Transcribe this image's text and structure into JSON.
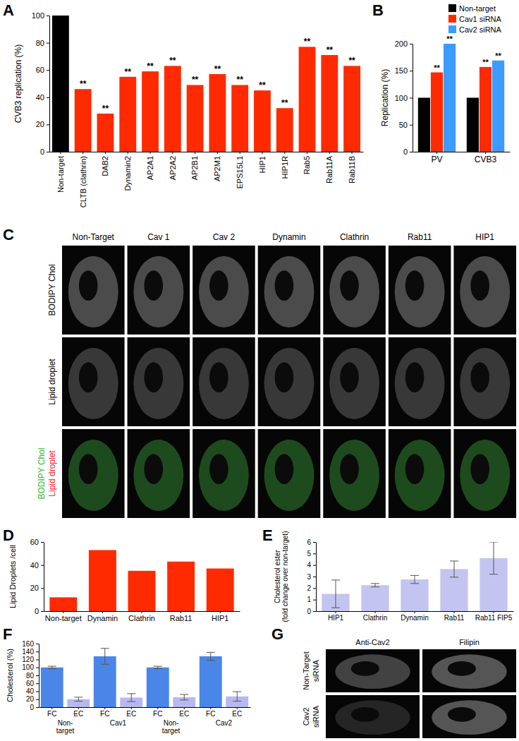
{
  "chart_data": [
    {
      "type": "bar",
      "title": "A",
      "ylabel": "CVB3 replication (%)",
      "categories": [
        "Non-target",
        "CLTB (clathrin)",
        "DAB2",
        "Dynamin2",
        "AP2A1",
        "AP2A2",
        "AP2B1",
        "AP2M1",
        "EPS15L1",
        "HIP1",
        "HIP1R",
        "Rab5",
        "Rab11A",
        "Rab11B"
      ],
      "values": [
        100,
        46,
        28,
        55,
        59,
        63,
        49,
        57,
        49,
        45,
        32,
        77,
        71,
        63
      ],
      "colors": [
        "#000000",
        "#ff2a00",
        "#ff2a00",
        "#ff2a00",
        "#ff2a00",
        "#ff2a00",
        "#ff2a00",
        "#ff2a00",
        "#ff2a00",
        "#ff2a00",
        "#ff2a00",
        "#ff2a00",
        "#ff2a00",
        "#ff2a00"
      ],
      "annotations": [
        null,
        "**",
        "**",
        "**",
        "**",
        "**",
        "**",
        "**",
        "**",
        "**",
        "**",
        "**",
        "**",
        "**"
      ],
      "ylim": [
        0,
        100
      ],
      "yticks": [
        0,
        20,
        40,
        60,
        80,
        100
      ]
    },
    {
      "type": "bar",
      "title": "B",
      "ylabel": "Replication (%)",
      "categories": [
        "PV",
        "CVB3"
      ],
      "series": [
        {
          "name": "Non-target",
          "color": "#000000",
          "values": [
            100,
            100
          ]
        },
        {
          "name": "Cav1 siRNA",
          "color": "#ff2a00",
          "values": [
            147,
            157
          ],
          "annotations": [
            "**",
            "**"
          ]
        },
        {
          "name": "Cav2 siRNA",
          "color": "#3d9bff",
          "values": [
            200,
            169
          ],
          "annotations": [
            "**",
            "**"
          ]
        }
      ],
      "ylim": [
        0,
        200
      ],
      "yticks": [
        0,
        50,
        100,
        150,
        200
      ],
      "legend": "top-right"
    },
    {
      "type": "bar",
      "title": "D",
      "ylabel": "Lipid Droplets /cell",
      "categories": [
        "Non-target",
        "Dynamin",
        "Clathrin",
        "Rab11",
        "HIP1"
      ],
      "values": [
        12,
        53,
        35,
        43,
        37
      ],
      "color": "#ff2a00",
      "ylim": [
        0,
        60
      ],
      "yticks": [
        0,
        20,
        40,
        60
      ]
    },
    {
      "type": "bar",
      "title": "E",
      "ylabel": [
        "Cholesterol ester",
        "(fold change over non-target)"
      ],
      "categories": [
        "HIP1",
        "Clathrin",
        "Dynamin",
        "Rab11",
        "Rab11 FIP5"
      ],
      "values": [
        1.5,
        2.25,
        2.75,
        3.65,
        4.6
      ],
      "errors": [
        1.2,
        0.15,
        0.35,
        0.7,
        1.4
      ],
      "color": "#c4c4f0",
      "ylim": [
        0,
        6
      ],
      "yticks": [
        0,
        1,
        2,
        3,
        4,
        5,
        6
      ]
    },
    {
      "type": "bar",
      "title": "F",
      "ylabel": "Cholesterol (%)",
      "categories": [
        "FC",
        "EC",
        "FC",
        "EC",
        "FC",
        "EC",
        "FC",
        "EC"
      ],
      "groups": [
        [
          "Non-",
          "target"
        ],
        [
          "Cav1"
        ],
        [
          "Non-",
          "target"
        ],
        [
          "Cav2"
        ]
      ],
      "values": [
        100,
        20,
        128,
        24,
        100,
        25,
        128,
        27
      ],
      "errors": [
        3,
        5,
        20,
        10,
        3,
        7,
        10,
        12
      ],
      "colors": [
        "#4a86e8",
        "#b8b8f0",
        "#4a86e8",
        "#b8b8f0",
        "#4a86e8",
        "#b8b8f0",
        "#4a86e8",
        "#b8b8f0"
      ],
      "ylim": [
        0,
        160
      ],
      "yticks": [
        0,
        20,
        40,
        60,
        80,
        100,
        120,
        140,
        160
      ]
    }
  ],
  "images": [
    {
      "title": "C",
      "columns": [
        "Non-Target",
        "Cav 1",
        "Cav 2",
        "Dynamin",
        "Clathrin",
        "Rab11",
        "HIP1"
      ],
      "rows": [
        [
          "BODIPY Chol"
        ],
        [
          "Lipid droplet"
        ],
        [
          "BODIPY Chol",
          "Lipid droplet"
        ]
      ]
    },
    {
      "title": "G",
      "columns": [
        "Anti-Cav2",
        "Filipin"
      ],
      "rows": [
        [
          "Non-Target",
          "siRNA"
        ],
        [
          "Cav2",
          "siRNA"
        ]
      ]
    }
  ]
}
